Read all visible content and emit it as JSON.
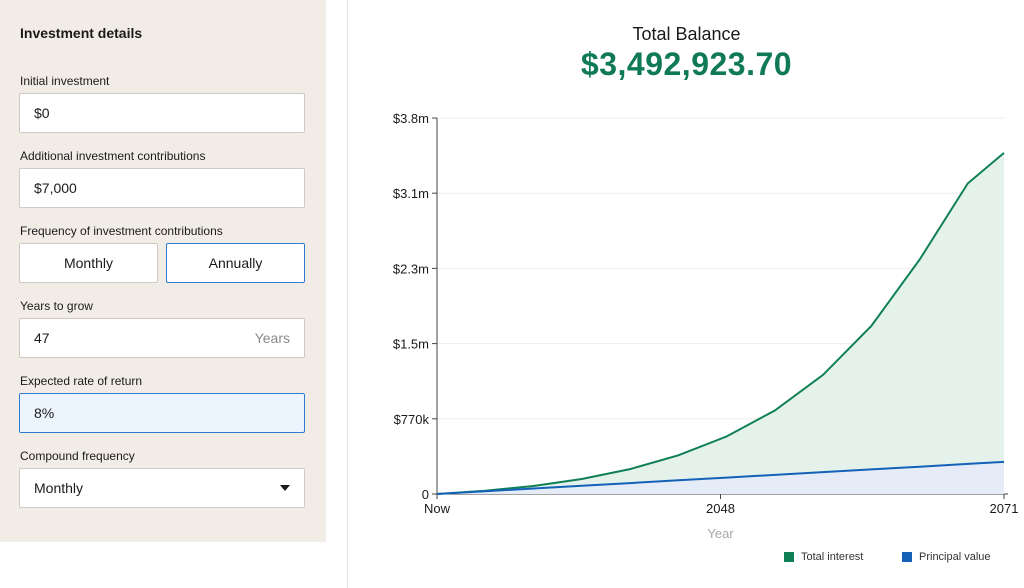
{
  "form": {
    "title": "Investment details",
    "initial_investment": {
      "label": "Initial investment",
      "value": "$0"
    },
    "additional_contributions": {
      "label": "Additional investment contributions",
      "value": "$7,000"
    },
    "frequency": {
      "label": "Frequency of investment contributions",
      "options": [
        "Monthly",
        "Annually"
      ],
      "selected": "Annually"
    },
    "years": {
      "label": "Years to grow",
      "value": "47",
      "suffix": "Years"
    },
    "rate": {
      "label": "Expected rate of return",
      "value": "8%"
    },
    "compound": {
      "label": "Compound frequency",
      "value": "Monthly"
    }
  },
  "summary": {
    "label": "Total Balance",
    "value": "$3,492,923.70"
  },
  "colors": {
    "interest": "#0f8055",
    "principal": "#1462b8",
    "interest_fill": "#e5f2ec",
    "principal_fill": "#e6ecf7"
  },
  "chart_data": {
    "type": "area",
    "title": "",
    "xlabel": "Year",
    "ylabel": "",
    "x_ticks": [
      "Now",
      "2048",
      "2071"
    ],
    "y_ticks": [
      {
        "value": 0,
        "label": "0"
      },
      {
        "value": 770000,
        "label": "$770k"
      },
      {
        "value": 1540000,
        "label": "$1.5m"
      },
      {
        "value": 2310000,
        "label": "$2.3m"
      },
      {
        "value": 3080000,
        "label": "$3.1m"
      },
      {
        "value": 3850000,
        "label": "$3.8m"
      }
    ],
    "xlim": [
      2024,
      2071
    ],
    "ylim": [
      0,
      3850000
    ],
    "x": [
      2024,
      2028,
      2032,
      2036,
      2040,
      2044,
      2048,
      2052,
      2056,
      2060,
      2064,
      2068,
      2071
    ],
    "series": [
      {
        "name": "Total interest",
        "values": [
          0,
          34000,
          82000,
          154000,
          255000,
          396000,
          589000,
          855000,
          1220000,
          1720000,
          2400000,
          3180000,
          3492924
        ]
      },
      {
        "name": "Principal value",
        "values": [
          0,
          28000,
          56000,
          84000,
          112000,
          140000,
          168000,
          196000,
          224000,
          252000,
          280000,
          308000,
          329000
        ]
      }
    ],
    "legend_position": "bottom-right",
    "grid": true
  }
}
